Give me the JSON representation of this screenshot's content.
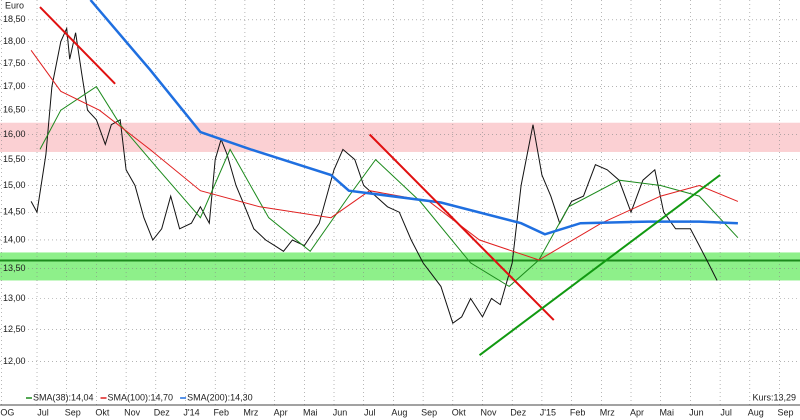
{
  "chart_data": {
    "type": "line",
    "y_axis_label": "Euro",
    "log_scale": true,
    "grid": true,
    "legend": "bottom-left",
    "ylim": [
      11.36,
      18.97
    ],
    "yticks": [
      {
        "value": 12,
        "label": "12,00"
      },
      {
        "value": 12.5,
        "label": "12,50"
      },
      {
        "value": 13,
        "label": "13,00"
      },
      {
        "value": 13.5,
        "label": "13,50"
      },
      {
        "value": 14,
        "label": "14,00"
      },
      {
        "value": 14.5,
        "label": "14,50"
      },
      {
        "value": 15,
        "label": "15,00"
      },
      {
        "value": 15.5,
        "label": "15,50"
      },
      {
        "value": 16,
        "label": "16,00"
      },
      {
        "value": 16.5,
        "label": "16,50"
      },
      {
        "value": 17,
        "label": "17,00"
      },
      {
        "value": 17.5,
        "label": "17,50"
      },
      {
        "value": 18,
        "label": "18,00"
      },
      {
        "value": 18.5,
        "label": "18,50"
      }
    ],
    "xlim": [
      -1.246,
      25.69
    ],
    "xticks": [
      {
        "value": -1.2,
        "label": "OG"
      },
      {
        "value": 0,
        "label": "Jul"
      },
      {
        "value": 1,
        "label": "Sep"
      },
      {
        "value": 2,
        "label": "Okt"
      },
      {
        "value": 3,
        "label": "Nov"
      },
      {
        "value": 4,
        "label": "Dez"
      },
      {
        "value": 5,
        "label": "J'14"
      },
      {
        "value": 6,
        "label": "Feb"
      },
      {
        "value": 7,
        "label": "Mrz"
      },
      {
        "value": 8,
        "label": "Apr"
      },
      {
        "value": 9,
        "label": "Mai"
      },
      {
        "value": 10,
        "label": "Jun"
      },
      {
        "value": 11,
        "label": "Jul"
      },
      {
        "value": 12,
        "label": "Aug"
      },
      {
        "value": 13,
        "label": "Sep"
      },
      {
        "value": 14,
        "label": "Okt"
      },
      {
        "value": 15,
        "label": "Nov"
      },
      {
        "value": 16,
        "label": "Dez"
      },
      {
        "value": 17,
        "label": "J'15"
      },
      {
        "value": 18,
        "label": "Feb"
      },
      {
        "value": 19,
        "label": "Mrz"
      },
      {
        "value": 20,
        "label": "Apr"
      },
      {
        "value": 21,
        "label": "Mai"
      },
      {
        "value": 22,
        "label": "Jun"
      },
      {
        "value": 23,
        "label": "Jul"
      },
      {
        "value": 24,
        "label": "Aug"
      },
      {
        "value": 25,
        "label": "Sep"
      }
    ],
    "bands": [
      {
        "range": [
          15.65,
          16.24
        ],
        "color": "#fbd0d3"
      },
      {
        "range": [
          13.3,
          13.78
        ],
        "color": "#8ef08a"
      }
    ],
    "hlines": [
      {
        "value": 13.64,
        "color": "#1c8a1c"
      }
    ],
    "trendlines": [
      {
        "from": [
          0.1,
          18.8
        ],
        "to": [
          2.63,
          17.06
        ],
        "color": "#e01010"
      },
      {
        "from": [
          11.2,
          16.0
        ],
        "to": [
          17.4,
          12.65
        ],
        "color": "#e01010"
      },
      {
        "from": [
          14.9,
          12.1
        ],
        "to": [
          23.0,
          15.2
        ],
        "color": "#119911"
      }
    ],
    "series": [
      {
        "color": "#111111",
        "x": [
          -0.2,
          0,
          0.3,
          0.5,
          0.8,
          1.0,
          1.1,
          1.3,
          1.5,
          1.7,
          2.0,
          2.3,
          2.5,
          2.8,
          3.0,
          3.3,
          3.6,
          3.9,
          4.2,
          4.5,
          4.8,
          5.2,
          5.5,
          5.8,
          6.0,
          6.2,
          6.4,
          6.7,
          7.0,
          7.3,
          7.7,
          8.0,
          8.3,
          8.6,
          9.0,
          9.5,
          10.0,
          10.3,
          10.7,
          11.0,
          11.4,
          11.8,
          12.2,
          12.6,
          13.0,
          13.3,
          13.6,
          14.0,
          14.3,
          14.6,
          15.0,
          15.3,
          15.6,
          16.0,
          16.3,
          16.7,
          17.0,
          17.3,
          17.6,
          18.0,
          18.4,
          18.8,
          19.2,
          19.6,
          20.0,
          20.4,
          20.8,
          21.1,
          21.5,
          22.0,
          22.3,
          22.6,
          22.9
        ],
        "values": [
          14.7,
          14.5,
          15.6,
          17.0,
          18.0,
          18.3,
          17.6,
          18.2,
          17.3,
          16.5,
          16.3,
          15.8,
          16.2,
          16.3,
          15.3,
          15.0,
          14.4,
          14.0,
          14.2,
          14.8,
          14.2,
          14.3,
          14.6,
          14.3,
          15.5,
          15.9,
          15.6,
          15.0,
          14.6,
          14.2,
          14.0,
          13.9,
          13.8,
          14.0,
          13.9,
          14.3,
          15.3,
          15.7,
          15.5,
          15.0,
          14.8,
          14.6,
          14.5,
          14.0,
          13.6,
          13.4,
          13.2,
          12.6,
          12.7,
          13.0,
          12.7,
          13.0,
          12.9,
          13.6,
          15.0,
          16.2,
          15.2,
          14.8,
          14.3,
          14.7,
          14.8,
          15.4,
          15.3,
          15.1,
          14.5,
          15.1,
          15.3,
          14.5,
          14.2,
          14.2,
          13.9,
          13.6,
          13.3
        ]
      },
      {
        "name": "SMA(38):14,04",
        "color": "#1c8a1c",
        "x": [
          0.1,
          0.8,
          2.0,
          2.8,
          4.1,
          5.5,
          6.5,
          7.8,
          9.2,
          10.5,
          11.4,
          12.9,
          14.6,
          15.9,
          16.9,
          17.9,
          19.6,
          21.0,
          22.3,
          23.6
        ],
        "values": [
          15.7,
          16.5,
          17.0,
          16.2,
          15.3,
          14.4,
          15.7,
          14.4,
          13.8,
          14.8,
          15.5,
          14.7,
          13.6,
          13.2,
          13.65,
          14.6,
          15.1,
          15.0,
          14.8,
          14.04
        ]
      },
      {
        "name": "SMA(100):14,70",
        "color": "#e02020",
        "x": [
          -0.2,
          0.8,
          2.1,
          3.8,
          5.5,
          7.5,
          9.9,
          11.2,
          13.2,
          14.9,
          16.9,
          19.0,
          21.0,
          22.3,
          23.6
        ],
        "values": [
          17.8,
          16.9,
          16.5,
          15.7,
          14.9,
          14.6,
          14.4,
          14.9,
          14.7,
          14.0,
          13.65,
          14.3,
          14.8,
          15.0,
          14.7
        ]
      },
      {
        "name": "SMA(200):14,30",
        "color": "#1f6fe0",
        "x": [
          1.8,
          3.8,
          5.5,
          7.2,
          9.9,
          10.5,
          13.6,
          16.3,
          17.1,
          18.3,
          20.6,
          22.3,
          23.6
        ],
        "values": [
          18.97,
          17.37,
          16.05,
          15.7,
          15.2,
          14.9,
          14.68,
          14.3,
          14.1,
          14.3,
          14.33,
          14.33,
          14.3
        ]
      }
    ],
    "price_label": "Kurs:13,29"
  }
}
